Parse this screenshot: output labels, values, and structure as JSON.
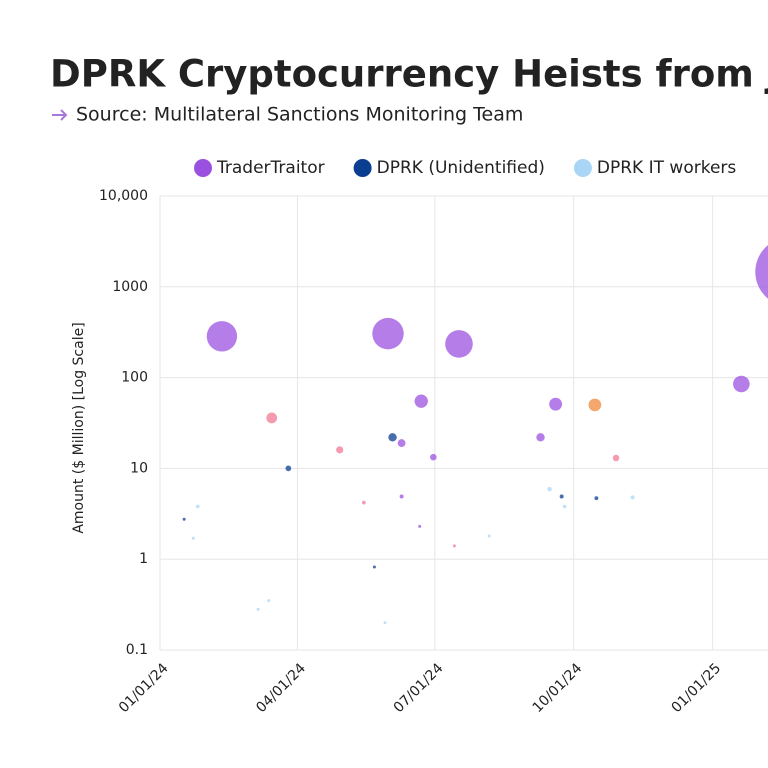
{
  "chart_data": {
    "type": "bubble",
    "title": "DPRK Cryptocurrency Heists from Ja",
    "subtitle": "Source: Multilateral Sanctions Monitoring Team",
    "y_label": "Amount ($ Million) [Log Scale]",
    "y_log_scale": true,
    "grid": true,
    "legend": "top",
    "xlim": [
      "01/01/24",
      "03/01/25"
    ],
    "xticks": [
      "01/01/24",
      "04/01/24",
      "07/01/24",
      "10/01/24",
      "01/01/25"
    ],
    "ylim": [
      0.1,
      10000
    ],
    "yticks": [
      0.1,
      1,
      10,
      100,
      1000,
      {
        "value": 10000,
        "label": "10,000"
      }
    ],
    "series": [
      {
        "name": "TraderTraitor",
        "color": "#9b51e0",
        "x": [
          "02/11/24",
          "05/31/24",
          "07/17/24",
          "06/22/24",
          "06/09/24",
          "06/30/24",
          "09/19/24",
          "09/09/24",
          "06/21/24",
          "06/09/24",
          "01/20/25",
          "02/21/25"
        ],
        "values": [
          285,
          305,
          235,
          55,
          19,
          13.3,
          51,
          22,
          2.3,
          4.9,
          85,
          1460
        ]
      },
      {
        "name": "DPRK (Unidentified)",
        "color": "#0b3d91",
        "x": [
          "01/17/24",
          "03/26/24",
          "05/22/24",
          "06/03/24",
          "09/23/24",
          "10/16/24"
        ],
        "values": [
          2.75,
          10,
          0.82,
          22,
          4.9,
          4.7
        ]
      },
      {
        "name": "DPRK IT workers",
        "color": "#a9d6f7",
        "x": [
          "01/26/24",
          "01/23/24",
          "03/06/24",
          "03/13/24",
          "05/29/24",
          "08/06/24",
          "09/15/24",
          "09/25/24",
          "11/09/24"
        ],
        "values": [
          3.8,
          1.7,
          0.28,
          0.35,
          0.2,
          1.8,
          5.9,
          3.8,
          4.8
        ]
      },
      {
        "color": "#f07a96",
        "x": [
          "03/15/24",
          "04/29/24",
          "05/15/24",
          "07/14/24",
          "10/29/24"
        ],
        "values": [
          36,
          16,
          4.2,
          1.4,
          13
        ]
      },
      {
        "color": "#f08a3c",
        "x": [
          "10/15/24"
        ],
        "values": [
          50
        ]
      }
    ]
  }
}
